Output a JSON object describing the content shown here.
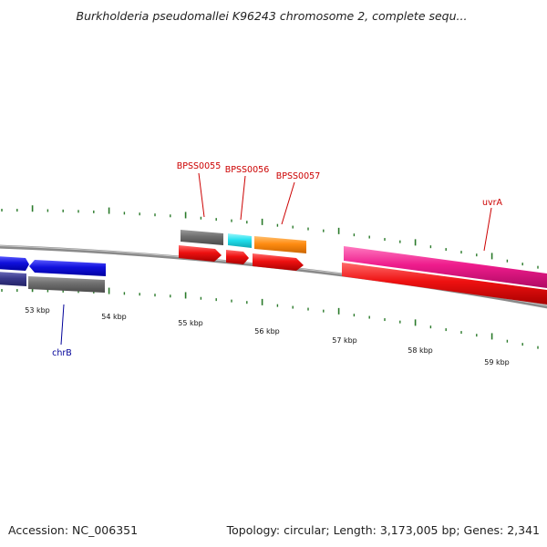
{
  "title": "Burkholderia pseudomallei K96243 chromosome 2, complete sequ...",
  "footer": {
    "accession": "Accession: NC_006351",
    "summary": "Topology: circular; Length: 3,173,005 bp; Genes: 2,341"
  },
  "scale_labels": [
    "53 kbp",
    "54 kbp",
    "55 kbp",
    "56 kbp",
    "57 kbp",
    "58 kbp",
    "59 kbp"
  ],
  "gene_labels": [
    {
      "text": "BPSS0055",
      "color": "#cc0000"
    },
    {
      "text": "BPSS0056",
      "color": "#cc0000"
    },
    {
      "text": "BPSS0057",
      "color": "#cc0000"
    },
    {
      "text": "uvrA",
      "color": "#cc0000"
    },
    {
      "text": "chrB",
      "color": "#000099"
    }
  ],
  "colors": {
    "backbone": "#8a8a8a",
    "gc_ticks": "#2a7a2a",
    "cds": "#ee1111",
    "hypothetical_gene": "#707070",
    "blue_gene": "#1111dd",
    "navy_gene": "#3a3a8c",
    "cyan_gene": "#22e0ee",
    "orange_gene": "#ff8c11",
    "magenta_gene": "#ee1c8c"
  }
}
